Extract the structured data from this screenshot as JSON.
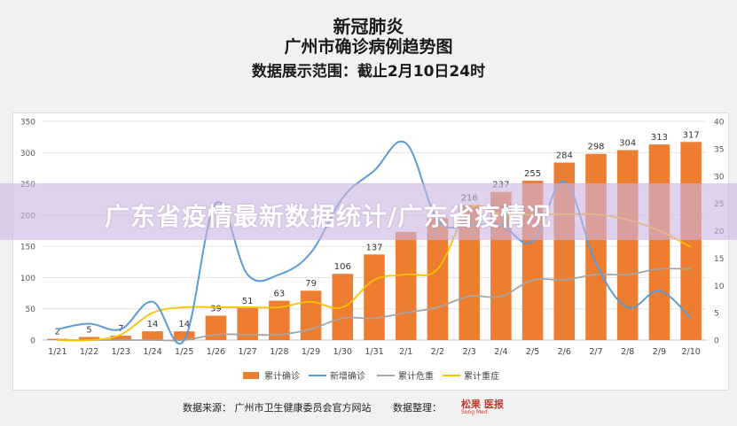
{
  "header": {
    "title1": "新冠肺炎",
    "title2": "广州市确诊病例趋势图",
    "title3": "数据展示范围：截止2月10日24时"
  },
  "colors": {
    "bar": "#ed7d31",
    "new": "#5b9bd5",
    "critical": "#a5a5a5",
    "severe": "#ffc000"
  },
  "chart_data": {
    "type": "bar",
    "categories": [
      "1/21",
      "1/22",
      "1/23",
      "1/24",
      "1/25",
      "1/26",
      "1/27",
      "1/28",
      "1/29",
      "1/30",
      "1/31",
      "2/1",
      "2/2",
      "2/3",
      "2/4",
      "2/5",
      "2/6",
      "2/7",
      "2/8",
      "2/9",
      "2/10"
    ],
    "series": [
      {
        "name": "累计确诊",
        "type": "bar",
        "axis": "left",
        "values": [
          2,
          5,
          7,
          14,
          14,
          39,
          51,
          63,
          79,
          106,
          137,
          173,
          195,
          216,
          237,
          255,
          284,
          298,
          304,
          313,
          317
        ],
        "labels": [
          "2",
          "5",
          "7",
          "14",
          "14",
          "39",
          "51",
          "63",
          "79",
          "106",
          "137",
          "",
          "",
          "216",
          "237",
          "255",
          "284",
          "298",
          "304",
          "313",
          "317"
        ]
      },
      {
        "name": "新增确诊",
        "type": "line",
        "axis": "right",
        "values": [
          2,
          3,
          2,
          7,
          0,
          25,
          12,
          12,
          16,
          26,
          31,
          36,
          22,
          21,
          21,
          18,
          29,
          14,
          6,
          9,
          4
        ]
      },
      {
        "name": "累计危重",
        "type": "line",
        "axis": "right",
        "values": [
          0,
          0,
          0,
          0,
          0,
          1,
          1,
          1,
          2,
          4,
          4,
          5,
          6,
          8,
          8,
          11,
          11,
          12,
          12,
          13,
          13
        ]
      },
      {
        "name": "累计重症",
        "type": "line",
        "axis": "right",
        "values": [
          0,
          0,
          1,
          5,
          6,
          6,
          6,
          6,
          7,
          6,
          11,
          12,
          13,
          24,
          23,
          23,
          23,
          23,
          22,
          20,
          17
        ]
      }
    ],
    "y_left": {
      "min": 0,
      "max": 350,
      "ticks": [
        0,
        50,
        100,
        150,
        200,
        250,
        300,
        350
      ]
    },
    "y_right": {
      "min": 0,
      "max": 40,
      "ticks": [
        0,
        5,
        10,
        15,
        20,
        25,
        30,
        35,
        40
      ]
    },
    "legend": [
      {
        "label": "累计确诊",
        "kind": "bar"
      },
      {
        "label": "新增确诊",
        "kind": "line"
      },
      {
        "label": "累计危重",
        "kind": "line"
      },
      {
        "label": "累计重症",
        "kind": "line"
      }
    ]
  },
  "footer": {
    "source": "数据来源：  广州市卫生健康委员会官方网站",
    "organizer": "数据整理：",
    "logo": "松果 医报",
    "logo_sub": "Song Med"
  },
  "overlay": {
    "text": "广东省疫情最新数据统计/广东省疫情况"
  }
}
